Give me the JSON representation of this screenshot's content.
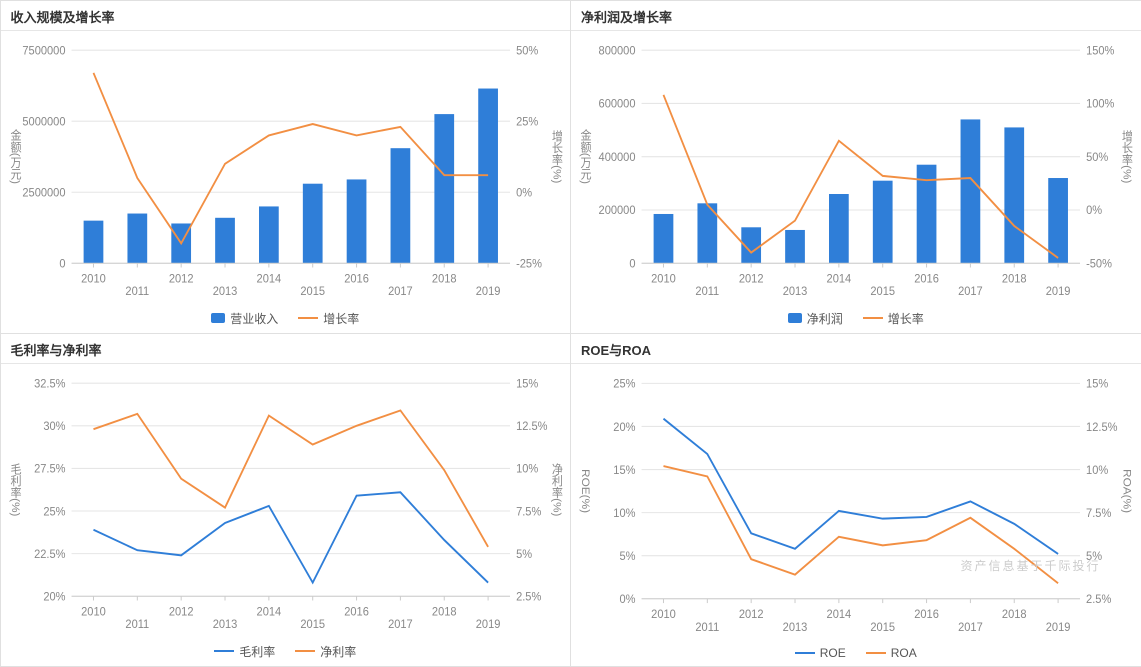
{
  "colors": {
    "bar": "#2f7ed8",
    "line_orange": "#f28f43",
    "line_blue": "#2f7ed8",
    "grid": "#e6e6e6",
    "axis_text": "#888888",
    "panel_border": "#e0e0e0",
    "bg": "#ffffff"
  },
  "categories": [
    "2010",
    "2011",
    "2012",
    "2013",
    "2014",
    "2015",
    "2016",
    "2017",
    "2018",
    "2019"
  ],
  "panel1": {
    "title": "收入规模及增长率",
    "left_axis_title": "金额(万元)",
    "right_axis_title": "增长率(%)",
    "left_ylim": [
      0,
      7500000
    ],
    "left_ytick_step": 2500000,
    "right_ylim": [
      -25,
      50
    ],
    "right_ytick_step": 25,
    "right_format": "%",
    "bars": {
      "name": "营业收入",
      "color": "#2f7ed8",
      "values": [
        1500000,
        1750000,
        1400000,
        1600000,
        2000000,
        2800000,
        2950000,
        4050000,
        5250000,
        6150000
      ]
    },
    "line": {
      "name": "增长率",
      "color": "#f28f43",
      "values": [
        42,
        5,
        -18,
        10,
        20,
        24,
        20,
        23,
        6,
        6
      ]
    }
  },
  "panel2": {
    "title": "净利润及增长率",
    "left_axis_title": "金额(万元)",
    "right_axis_title": "增长率(%)",
    "left_ylim": [
      0,
      800000
    ],
    "left_ytick_step": 200000,
    "right_ylim": [
      -50,
      150
    ],
    "right_ytick_step": 50,
    "right_format": "%",
    "bars": {
      "name": "净利润",
      "color": "#2f7ed8",
      "values": [
        185000,
        225000,
        135000,
        125000,
        260000,
        310000,
        370000,
        540000,
        510000,
        320000
      ]
    },
    "line": {
      "name": "增长率",
      "color": "#f28f43",
      "values": [
        108,
        5,
        -40,
        -10,
        65,
        32,
        28,
        30,
        -15,
        -45
      ]
    }
  },
  "panel3": {
    "title": "毛利率与净利率",
    "left_axis_title": "毛利率(%)",
    "right_axis_title": "净利率(%)",
    "left_ylim": [
      20,
      32.5
    ],
    "left_ytick_step": 2.5,
    "right_ylim": [
      2.5,
      15
    ],
    "right_ytick_step": 2.5,
    "left_format": "%",
    "right_format": "%",
    "line_left": {
      "name": "毛利率",
      "color": "#2f7ed8",
      "values": [
        23.9,
        22.7,
        22.4,
        24.3,
        25.3,
        20.8,
        25.9,
        26.1,
        23.3,
        20.8
      ]
    },
    "line_right": {
      "name": "净利率",
      "color": "#f28f43",
      "values": [
        12.3,
        13.2,
        9.4,
        7.7,
        13.1,
        11.4,
        12.5,
        13.4,
        9.9,
        5.4
      ]
    }
  },
  "panel4": {
    "title": "ROE与ROA",
    "left_axis_title": "ROE(%)",
    "right_axis_title": "ROA(%)",
    "left_ylim": [
      0,
      25
    ],
    "left_ytick_step": 5,
    "right_ylim": [
      2.5,
      15
    ],
    "right_ytick_step": 2.5,
    "left_format": "%",
    "right_format": "%",
    "line_left": {
      "name": "ROE",
      "color": "#2f7ed8",
      "values": [
        20.9,
        16.8,
        7.6,
        5.8,
        10.2,
        9.3,
        9.5,
        11.3,
        8.7,
        5.2
      ]
    },
    "line_right": {
      "name": "ROA",
      "color": "#f28f43",
      "values": [
        10.2,
        9.6,
        4.8,
        3.9,
        6.1,
        5.6,
        5.9,
        7.2,
        5.4,
        3.4
      ]
    },
    "watermark": "资产信息基于千际投行"
  }
}
